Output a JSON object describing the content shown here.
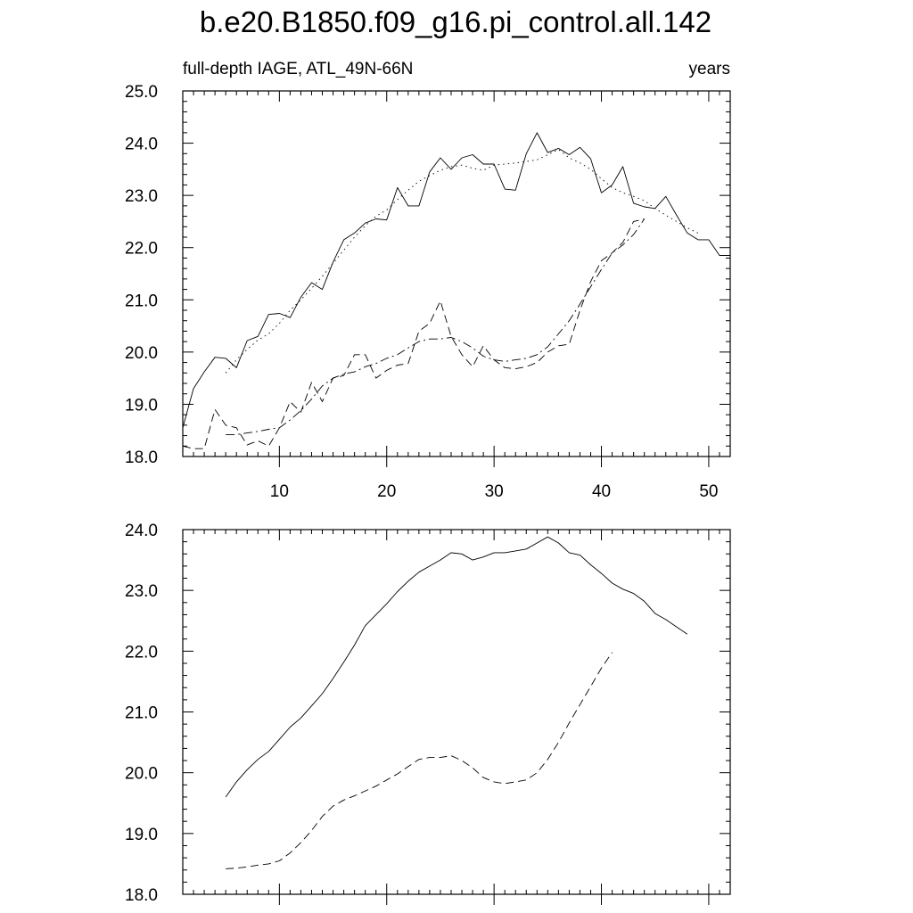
{
  "chart_data": [
    {
      "type": "line",
      "title": "b.e20.B1850.f09_g16.pi_control.all.142",
      "subtitle_left": "full-depth IAGE, ATL_49N-66N",
      "subtitle_right": "years",
      "xlim": [
        1,
        52
      ],
      "ylim": [
        18.0,
        25.0
      ],
      "x_ticks": [
        "10",
        "20",
        "30",
        "40",
        "50"
      ],
      "y_ticks": [
        "18.0",
        "19.0",
        "20.0",
        "21.0",
        "22.0",
        "23.0",
        "24.0",
        "25.0"
      ],
      "x": [
        1,
        2,
        3,
        4,
        5,
        6,
        7,
        8,
        9,
        10,
        11,
        12,
        13,
        14,
        15,
        16,
        17,
        18,
        19,
        20,
        21,
        22,
        23,
        24,
        25,
        26,
        27,
        28,
        29,
        30,
        31,
        32,
        33,
        34,
        35,
        36,
        37,
        38,
        39,
        40,
        41,
        42,
        43,
        44,
        45,
        46,
        47,
        48,
        49,
        50,
        51,
        52
      ],
      "series": [
        {
          "style": "solid",
          "values": [
            18.55,
            19.3,
            19.62,
            19.9,
            19.88,
            19.7,
            20.22,
            20.3,
            20.72,
            20.74,
            20.66,
            21.05,
            21.33,
            21.2,
            21.72,
            22.15,
            22.28,
            22.47,
            22.55,
            22.53,
            23.15,
            22.8,
            22.8,
            23.45,
            23.72,
            23.5,
            23.72,
            23.78,
            23.6,
            23.6,
            23.12,
            23.1,
            23.8,
            24.2,
            23.82,
            23.9,
            23.78,
            23.92,
            23.7,
            23.05,
            23.2,
            23.55,
            22.85,
            22.78,
            22.75,
            22.98,
            22.62,
            22.28,
            22.15,
            22.15,
            21.85,
            21.85
          ]
        },
        {
          "style": "dotted",
          "values": [
            null,
            null,
            null,
            null,
            19.6,
            19.85,
            20.05,
            20.23,
            20.35,
            20.55,
            20.8,
            21.0,
            21.22,
            21.45,
            21.7,
            21.95,
            22.2,
            22.42,
            22.6,
            22.72,
            22.92,
            23.1,
            23.27,
            23.38,
            23.48,
            23.55,
            23.58,
            23.52,
            23.48,
            23.58,
            23.6,
            23.62,
            23.65,
            23.68,
            23.78,
            23.88,
            23.72,
            23.62,
            23.5,
            23.32,
            23.15,
            23.05,
            22.98,
            22.9,
            22.75,
            22.62,
            22.5,
            22.38,
            22.28,
            null,
            null,
            null
          ]
        },
        {
          "style": "dashed",
          "values": [
            18.2,
            18.15,
            18.15,
            18.9,
            18.6,
            18.55,
            18.22,
            18.3,
            18.2,
            18.55,
            19.05,
            18.85,
            19.42,
            19.05,
            19.5,
            19.55,
            19.95,
            19.95,
            19.5,
            19.65,
            19.75,
            19.78,
            20.4,
            20.55,
            20.98,
            20.3,
            19.95,
            19.72,
            20.12,
            19.85,
            19.7,
            19.68,
            19.72,
            19.8,
            20.0,
            20.12,
            20.15,
            20.8,
            21.35,
            21.75,
            21.9,
            22.1,
            22.5,
            22.55,
            null,
            null,
            null,
            null,
            null,
            null,
            null,
            null
          ]
        },
        {
          "style": "dash-dot",
          "values": [
            null,
            null,
            null,
            null,
            18.42,
            18.42,
            18.45,
            18.48,
            18.52,
            18.55,
            18.7,
            18.88,
            19.1,
            19.35,
            19.5,
            19.58,
            19.62,
            19.72,
            19.78,
            19.88,
            19.95,
            20.08,
            20.2,
            20.25,
            20.25,
            20.28,
            20.2,
            20.08,
            19.92,
            19.85,
            19.82,
            19.85,
            19.88,
            19.95,
            20.1,
            20.35,
            20.6,
            20.92,
            21.25,
            21.58,
            21.9,
            22.05,
            22.25,
            22.55,
            null,
            null,
            null,
            null,
            null,
            null,
            null,
            null
          ]
        }
      ]
    },
    {
      "type": "line",
      "xlim": [
        1,
        52
      ],
      "ylim": [
        18.0,
        24.0
      ],
      "y_ticks": [
        "18.0",
        "19.0",
        "20.0",
        "21.0",
        "22.0",
        "23.0",
        "24.0"
      ],
      "x": [
        5,
        6,
        7,
        8,
        9,
        10,
        11,
        12,
        13,
        14,
        15,
        16,
        17,
        18,
        19,
        20,
        21,
        22,
        23,
        24,
        25,
        26,
        27,
        28,
        29,
        30,
        31,
        32,
        33,
        34,
        35,
        36,
        37,
        38,
        39,
        40,
        41,
        42,
        43,
        44,
        45,
        46,
        47,
        48,
        49
      ],
      "series": [
        {
          "style": "solid",
          "values": [
            19.6,
            19.85,
            20.05,
            20.22,
            20.35,
            20.55,
            20.75,
            20.9,
            21.1,
            21.3,
            21.55,
            21.82,
            22.1,
            22.42,
            22.6,
            22.78,
            22.98,
            23.15,
            23.3,
            23.4,
            23.5,
            23.62,
            23.6,
            23.5,
            23.55,
            23.62,
            23.62,
            23.65,
            23.68,
            23.78,
            23.88,
            23.78,
            23.62,
            23.58,
            23.42,
            23.28,
            23.12,
            23.02,
            22.95,
            22.82,
            22.62,
            22.52,
            22.4,
            22.28,
            null
          ]
        },
        {
          "style": "dashed",
          "values": [
            18.42,
            18.43,
            18.45,
            18.48,
            18.5,
            18.55,
            18.68,
            18.85,
            19.05,
            19.28,
            19.45,
            19.55,
            19.62,
            19.7,
            19.78,
            19.88,
            19.98,
            20.1,
            20.22,
            20.25,
            20.25,
            20.28,
            20.2,
            20.08,
            19.92,
            19.85,
            19.82,
            19.85,
            19.88,
            20.0,
            20.22,
            20.5,
            20.82,
            21.12,
            21.42,
            21.72,
            21.98,
            null,
            null,
            null,
            null,
            null,
            null,
            null,
            null
          ]
        }
      ]
    }
  ]
}
